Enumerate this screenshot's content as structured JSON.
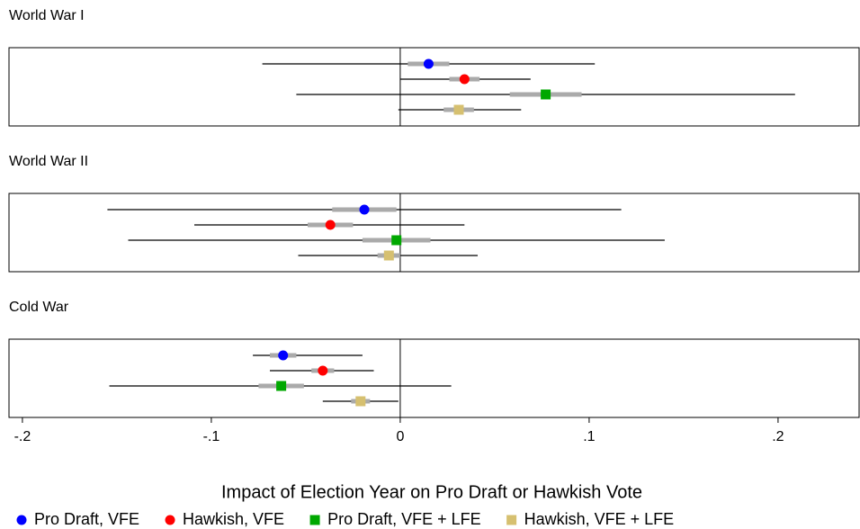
{
  "chart_data": {
    "type": "coefplot",
    "xlabel": "Impact of Election Year on Pro Draft or Hawkish Vote",
    "xlim": [
      -0.2071,
      0.2429
    ],
    "xticks": [
      {
        "value": -0.2,
        "label": "-.2"
      },
      {
        "value": -0.1,
        "label": "-.1"
      },
      0,
      {
        "value": 0.1,
        "label": ".1"
      },
      {
        "value": 0.2,
        "label": ".2"
      }
    ],
    "xline": 0,
    "series": [
      {
        "name": "Pro Draft, VFE",
        "color": "#0000ff",
        "marker": "circle"
      },
      {
        "name": "Hawkish, VFE",
        "color": "#ff0000",
        "marker": "circle"
      },
      {
        "name": "Pro Draft, VFE + LFE",
        "color": "#00a800",
        "marker": "square"
      },
      {
        "name": "Hawkish, VFE + LFE",
        "color": "#d6c070",
        "marker": "square"
      }
    ],
    "panels": [
      {
        "title": "World War I",
        "values": [
          0.015,
          0.034,
          0.077,
          0.031
        ],
        "inner_low": [
          0.004,
          0.026,
          0.058,
          0.023
        ],
        "inner_high": [
          0.026,
          0.042,
          0.096,
          0.039
        ],
        "ci_low": [
          -0.073,
          0.0,
          -0.055,
          -0.001
        ],
        "ci_high": [
          0.103,
          0.069,
          0.209,
          0.064
        ]
      },
      {
        "title": "World War II",
        "values": [
          -0.019,
          -0.037,
          -0.002,
          -0.006
        ],
        "inner_low": [
          -0.036,
          -0.049,
          -0.02,
          -0.012
        ],
        "inner_high": [
          -0.002,
          -0.025,
          0.016,
          0.0
        ],
        "ci_low": [
          -0.155,
          -0.109,
          -0.144,
          -0.054
        ],
        "ci_high": [
          0.117,
          0.034,
          0.14,
          0.041
        ]
      },
      {
        "title": "Cold War",
        "values": [
          -0.062,
          -0.041,
          -0.063,
          -0.021
        ],
        "inner_low": [
          -0.069,
          -0.047,
          -0.075,
          -0.026
        ],
        "inner_high": [
          -0.055,
          -0.035,
          -0.051,
          -0.016
        ],
        "ci_low": [
          -0.078,
          -0.069,
          -0.154,
          -0.041
        ],
        "ci_high": [
          -0.02,
          -0.014,
          0.027,
          -0.001
        ]
      }
    ]
  }
}
